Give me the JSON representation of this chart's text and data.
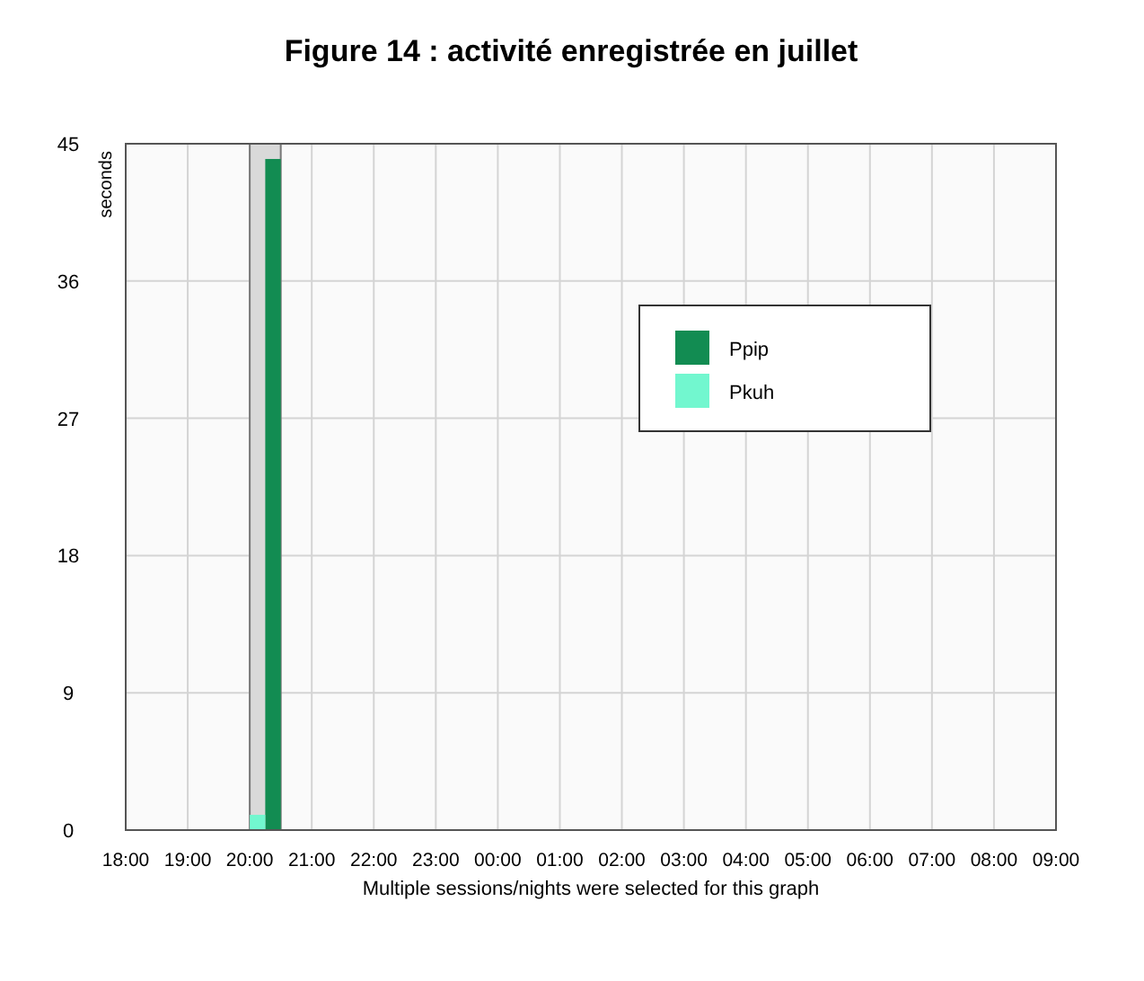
{
  "chart_data": {
    "type": "bar",
    "title": "Figure 14 : activité enregistrée en juillet",
    "xlabel": "Multiple sessions/nights were selected for this graph",
    "ylabel": "seconds",
    "series": [
      {
        "name": "Ppip",
        "color": "#128c52",
        "x": [
          "2000-07-01T20:15"
        ],
        "values": [
          44
        ]
      },
      {
        "name": "Pkuh",
        "color": "#72f7cf",
        "x": [
          "2000-07-01T20:00"
        ],
        "values": [
          1
        ]
      }
    ],
    "xlim": [
      "2000-07-01T18:00",
      "2000-07-02T09:00"
    ],
    "xticks": [
      {
        "value": "2000-07-01T18:00",
        "label": "18:00"
      },
      {
        "value": "2000-07-01T19:00",
        "label": "19:00"
      },
      {
        "value": "2000-07-01T20:00",
        "label": "20:00"
      },
      {
        "value": "2000-07-01T21:00",
        "label": "21:00"
      },
      {
        "value": "2000-07-01T22:00",
        "label": "22:00"
      },
      {
        "value": "2000-07-01T23:00",
        "label": "23:00"
      },
      {
        "value": "2000-07-02T00:00",
        "label": "00:00"
      },
      {
        "value": "2000-07-02T01:00",
        "label": "01:00"
      },
      {
        "value": "2000-07-02T02:00",
        "label": "02:00"
      },
      {
        "value": "2000-07-02T03:00",
        "label": "03:00"
      },
      {
        "value": "2000-07-02T04:00",
        "label": "04:00"
      },
      {
        "value": "2000-07-02T05:00",
        "label": "05:00"
      },
      {
        "value": "2000-07-02T06:00",
        "label": "06:00"
      },
      {
        "value": "2000-07-02T07:00",
        "label": "07:00"
      },
      {
        "value": "2000-07-02T08:00",
        "label": "08:00"
      },
      {
        "value": "2000-07-02T09:00",
        "label": "09:00"
      }
    ],
    "ylim": [
      0,
      45
    ],
    "yticks": [
      0,
      9,
      18,
      27,
      36,
      45
    ],
    "bands": [
      {
        "axis": "x",
        "from": "2000-07-01T20:00",
        "to": "2000-07-01T20:30",
        "color": "#d9d9d9"
      }
    ],
    "grid": true,
    "legend": "top right"
  }
}
